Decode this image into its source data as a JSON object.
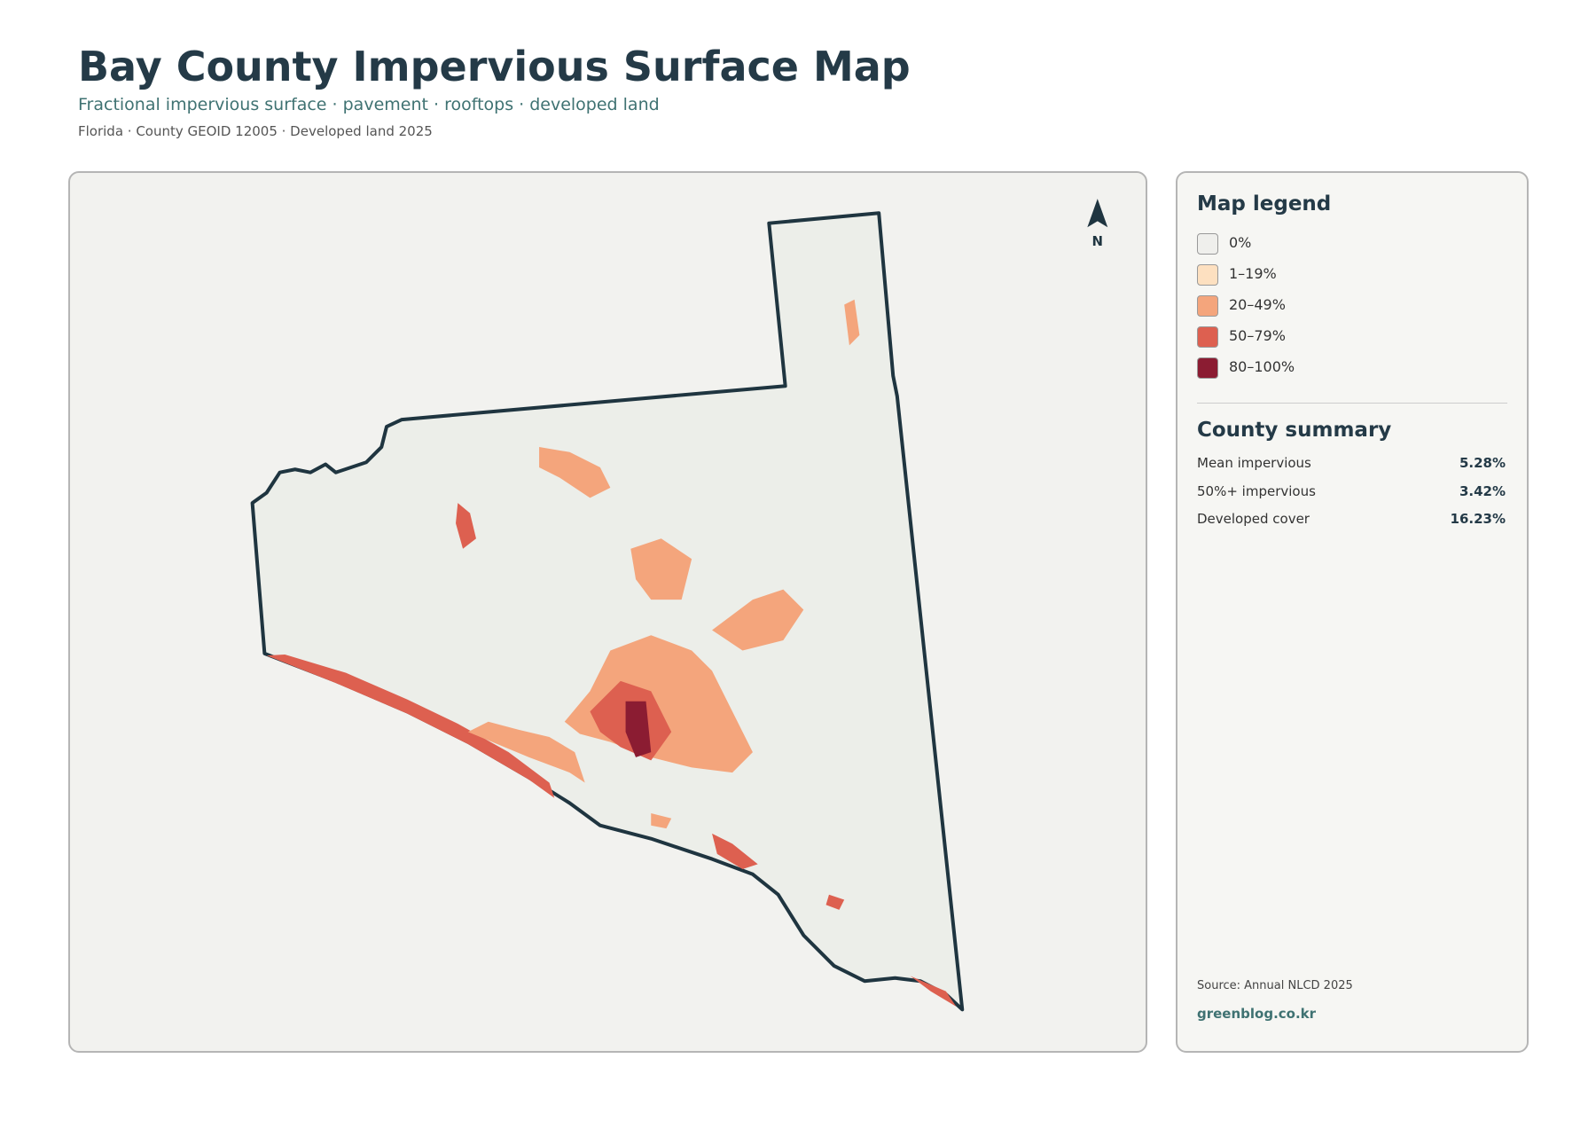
{
  "header": {
    "title": "Bay County Impervious Surface Map",
    "subtitle": "Fractional impervious surface · pavement · rooftops · developed land",
    "meta": "Florida · County GEOID 12005 · Developed land 2025"
  },
  "map": {
    "north_label": "N"
  },
  "legend": {
    "title": "Map legend",
    "items": [
      {
        "label": "0%",
        "color": "#efefec"
      },
      {
        "label": "1–19%",
        "color": "#fde0c0"
      },
      {
        "label": "20–49%",
        "color": "#f4a57c"
      },
      {
        "label": "50–79%",
        "color": "#dd6050"
      },
      {
        "label": "80–100%",
        "color": "#8b1c32"
      }
    ]
  },
  "summary": {
    "title": "County summary",
    "rows": [
      {
        "label": "Mean impervious",
        "value": "5.28%"
      },
      {
        "label": "50%+ impervious",
        "value": "3.42%"
      },
      {
        "label": "Developed cover",
        "value": "16.23%"
      }
    ]
  },
  "footer": {
    "source": "Source: Annual NLCD 2025",
    "site": "greenblog.co.kr"
  }
}
